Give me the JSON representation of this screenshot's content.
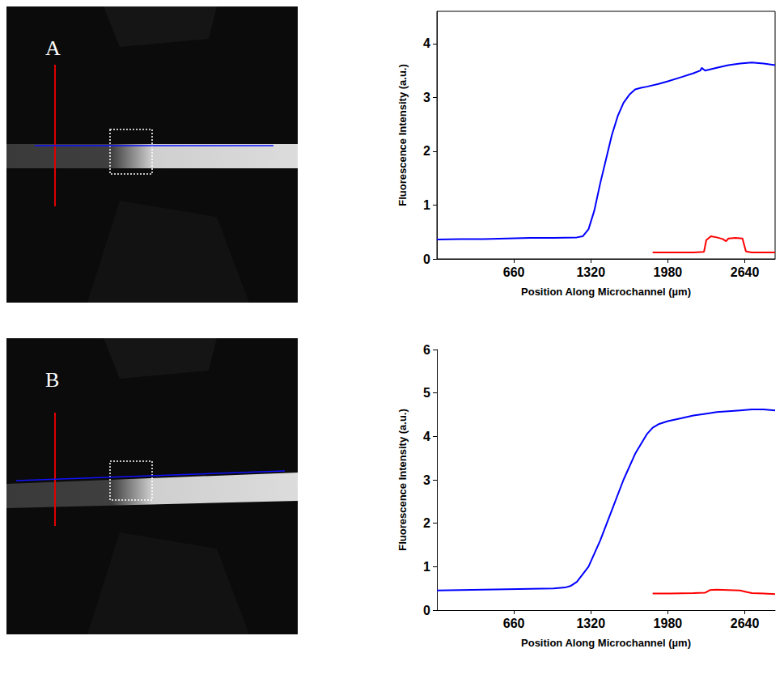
{
  "images": [
    "A",
    "B"
  ],
  "chart_data": [
    {
      "type": "line",
      "xlabel": "Position Along Microchannel (µm)",
      "ylabel": "Fluorescence Intensity (a.u.)",
      "xlim": [
        0,
        2900
      ],
      "xticks": [
        660,
        1320,
        1980,
        2640
      ],
      "ylim": [
        0,
        4.6
      ],
      "yticks": [
        0,
        1,
        2,
        3,
        4
      ],
      "grid": false,
      "series": [
        {
          "color": "#0000ff",
          "x": [
            0,
            200,
            400,
            600,
            800,
            1000,
            1200,
            1250,
            1300,
            1350,
            1400,
            1450,
            1500,
            1550,
            1600,
            1650,
            1700,
            1750,
            1800,
            1900,
            1980,
            2100,
            2200,
            2260,
            2270,
            2300,
            2400,
            2500,
            2600,
            2700,
            2800,
            2900
          ],
          "values": [
            0.36,
            0.37,
            0.37,
            0.38,
            0.39,
            0.39,
            0.4,
            0.42,
            0.55,
            0.9,
            1.4,
            1.85,
            2.3,
            2.65,
            2.9,
            3.05,
            3.15,
            3.18,
            3.2,
            3.25,
            3.3,
            3.38,
            3.45,
            3.5,
            3.55,
            3.5,
            3.55,
            3.6,
            3.63,
            3.65,
            3.63,
            3.6
          ]
        },
        {
          "color": "#ff0000",
          "x": [
            1850,
            2000,
            2200,
            2290,
            2310,
            2350,
            2400,
            2450,
            2480,
            2500,
            2560,
            2620,
            2650,
            2700,
            2800,
            2900
          ],
          "values": [
            0.12,
            0.12,
            0.12,
            0.13,
            0.35,
            0.42,
            0.4,
            0.37,
            0.33,
            0.38,
            0.39,
            0.38,
            0.14,
            0.12,
            0.12,
            0.12
          ]
        }
      ]
    },
    {
      "type": "line",
      "xlabel": "Position Along Microchannel (µm)",
      "ylabel": "Fluorescence Intensity (a.u.)",
      "xlim": [
        0,
        2900
      ],
      "xticks": [
        660,
        1320,
        1980,
        2640
      ],
      "ylim": [
        0,
        6
      ],
      "yticks": [
        0,
        1,
        2,
        3,
        4,
        5,
        6
      ],
      "grid": false,
      "series": [
        {
          "color": "#0000ff",
          "x": [
            0,
            200,
            400,
            600,
            800,
            1000,
            1100,
            1150,
            1200,
            1300,
            1400,
            1500,
            1600,
            1700,
            1800,
            1850,
            1900,
            1980,
            2100,
            2200,
            2300,
            2400,
            2500,
            2600,
            2700,
            2800,
            2900
          ],
          "values": [
            0.45,
            0.46,
            0.47,
            0.48,
            0.49,
            0.5,
            0.52,
            0.56,
            0.65,
            1.0,
            1.6,
            2.3,
            3.0,
            3.6,
            4.05,
            4.2,
            4.28,
            4.35,
            4.42,
            4.48,
            4.52,
            4.56,
            4.58,
            4.6,
            4.62,
            4.62,
            4.6
          ]
        },
        {
          "color": "#ff0000",
          "x": [
            1850,
            2000,
            2200,
            2300,
            2340,
            2400,
            2500,
            2600,
            2650,
            2700,
            2800,
            2900
          ],
          "values": [
            0.38,
            0.38,
            0.39,
            0.4,
            0.46,
            0.47,
            0.46,
            0.45,
            0.42,
            0.39,
            0.38,
            0.37
          ]
        }
      ]
    }
  ]
}
